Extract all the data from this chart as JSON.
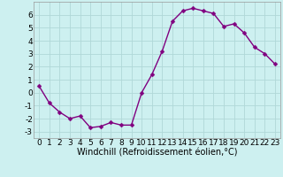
{
  "x": [
    0,
    1,
    2,
    3,
    4,
    5,
    6,
    7,
    8,
    9,
    10,
    11,
    12,
    13,
    14,
    15,
    16,
    17,
    18,
    19,
    20,
    21,
    22,
    23
  ],
  "y": [
    0.5,
    -0.8,
    -1.5,
    -2.0,
    -1.8,
    -2.7,
    -2.6,
    -2.3,
    -2.5,
    -2.5,
    0.0,
    1.4,
    3.2,
    5.5,
    6.3,
    6.5,
    6.3,
    6.1,
    5.1,
    5.3,
    4.6,
    3.5,
    3.0,
    2.2
  ],
  "line_color": "#800080",
  "marker_color": "#800080",
  "bg_color": "#cdf0f0",
  "grid_color": "#b0d8d8",
  "xlabel": "Windchill (Refroidissement éolien,°C)",
  "xlim": [
    -0.5,
    23.5
  ],
  "ylim": [
    -3.5,
    7.0
  ],
  "yticks": [
    -3,
    -2,
    -1,
    0,
    1,
    2,
    3,
    4,
    5,
    6
  ],
  "xticks": [
    0,
    1,
    2,
    3,
    4,
    5,
    6,
    7,
    8,
    9,
    10,
    11,
    12,
    13,
    14,
    15,
    16,
    17,
    18,
    19,
    20,
    21,
    22,
    23
  ],
  "xlabel_fontsize": 7,
  "tick_fontsize": 6.5,
  "line_width": 1.0,
  "marker_size": 2.5
}
